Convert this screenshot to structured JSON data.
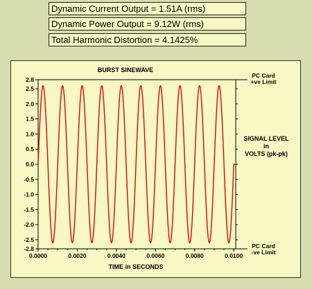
{
  "readouts": {
    "current": "Dynamic Current Output = 1.51A (rms)",
    "power": "Dynamic Power Output = 9.12W (rms)",
    "thd": "Total Harmonic Distortion = 4.1425%"
  },
  "chart_data": {
    "type": "line",
    "title": "BURST SINEWAVE",
    "xlabel": "TIME in SECONDS",
    "ylabel_lines": [
      "SIGNAL LEVEL",
      "in",
      "VOLTS (pk-pk)"
    ],
    "xlim": [
      0,
      0.0101
    ],
    "ylim": [
      -2.8,
      2.8
    ],
    "x_ticks": [
      "0.0000",
      "0.0020",
      "0.0040",
      "0.0060",
      "0.0080",
      "0.0100"
    ],
    "x_tick_values": [
      0,
      0.002,
      0.004,
      0.006,
      0.008,
      0.01
    ],
    "y_ticks": [
      "2.8",
      "2.5",
      "2.0",
      "1.5",
      "1.0",
      "0.5",
      "0.0",
      "-0.5",
      "-1.0",
      "-1.5",
      "-2.0",
      "-2.5",
      "-2.8"
    ],
    "y_tick_values": [
      2.8,
      2.5,
      2.0,
      1.5,
      1.0,
      0.5,
      0.0,
      -0.5,
      -1.0,
      -1.5,
      -2.0,
      -2.5,
      -2.8
    ],
    "series": [
      {
        "amplitude": 2.6,
        "frequency_hz": 1000,
        "phase_deg": 0,
        "burst_start": 0,
        "burst_end": 0.01,
        "color": "#e01010"
      }
    ],
    "limits": [
      {
        "value": 2.8,
        "label_lines": [
          "PC Card",
          "+ve Limit"
        ]
      },
      {
        "value": -2.8,
        "label_lines": [
          "PC Card",
          "-ve Limit"
        ]
      }
    ],
    "grid": false,
    "colors": {
      "axis": "#000000",
      "limit_line": "#000000"
    }
  }
}
